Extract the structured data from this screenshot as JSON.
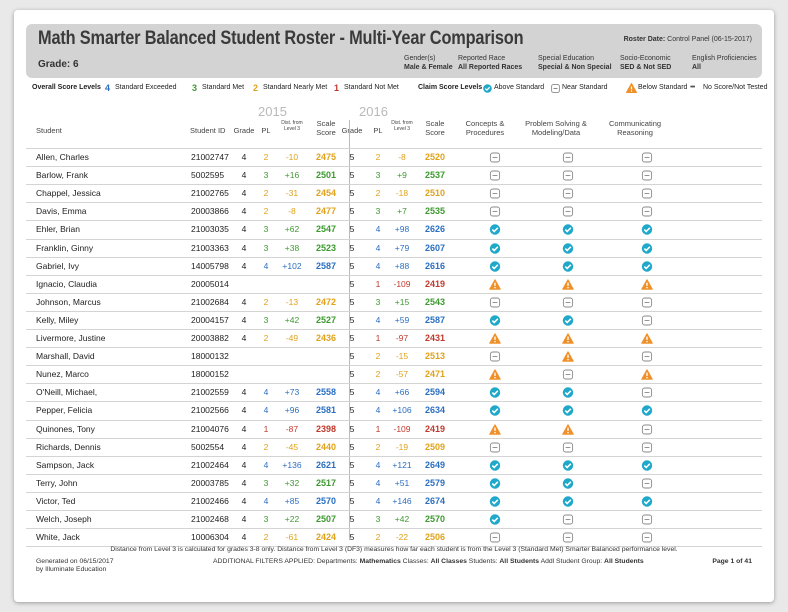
{
  "title": "Math Smarter Balanced Student Roster - Multi-Year Comparison",
  "grade_label": "Grade: 6",
  "roster_date": {
    "label": "Roster Date:",
    "value": "Control Panel (06-15-2017)"
  },
  "filters": [
    {
      "name": "Gender(s)",
      "value": "Male & Female"
    },
    {
      "name": "Reported Race",
      "value": "All Reported Races"
    },
    {
      "name": "Special Education",
      "value": "Special & Non Special"
    },
    {
      "name": "Socio-Economic",
      "value": "SED & Not SED"
    },
    {
      "name": "English Proficiencies",
      "value": "All"
    }
  ],
  "legend": {
    "overall_label": "Overall Score Levels",
    "levels": [
      {
        "num": "4",
        "label": "Standard Exceeded"
      },
      {
        "num": "3",
        "label": "Standard Met"
      },
      {
        "num": "2",
        "label": "Standard Nearly Met"
      },
      {
        "num": "1",
        "label": "Standard Not Met"
      }
    ],
    "claim_label": "Claim Score Levels",
    "claims": [
      "Above Standard",
      "Near Standard",
      "Below Standard",
      "No Score/Not Tested"
    ]
  },
  "columns": {
    "student": "Student",
    "student_id": "Student ID",
    "grade": "Grade",
    "pl": "PL",
    "dist_line1": "Dist. from",
    "dist_line2": "Level 3",
    "scale_line1": "Scale",
    "scale_line2": "Score",
    "year1": "2015",
    "year2": "2016",
    "claim1_line1": "Concepts &",
    "claim1_line2": "Procedures",
    "claim2_line1": "Problem Solving &",
    "claim2_line2": "Modeling/Data",
    "claim3_line1": "Communicating",
    "claim3_line2": "Reasoning"
  },
  "colors": {
    "exceeded": "#2a6fc2",
    "met": "#3c9a2e",
    "nearly": "#e0a21a",
    "not": "#c0392b",
    "above": "#1fa8c9",
    "below": "#f0902a",
    "near": "#8a8a8a"
  },
  "students": [
    {
      "name": "Allen, Charles",
      "id": "21002747",
      "y1": {
        "grade": "4",
        "pl": "2",
        "dist": "-10",
        "scale": "2475"
      },
      "y2": {
        "grade": "5",
        "pl": "2",
        "dist": "-8",
        "scale": "2520"
      },
      "claims": [
        "near",
        "near",
        "near"
      ]
    },
    {
      "name": "Barlow, Frank",
      "id": "5002595",
      "y1": {
        "grade": "4",
        "pl": "3",
        "dist": "+16",
        "scale": "2501"
      },
      "y2": {
        "grade": "5",
        "pl": "3",
        "dist": "+9",
        "scale": "2537"
      },
      "claims": [
        "near",
        "near",
        "near"
      ]
    },
    {
      "name": "Chappel, Jessica",
      "id": "21002765",
      "y1": {
        "grade": "4",
        "pl": "2",
        "dist": "-31",
        "scale": "2454"
      },
      "y2": {
        "grade": "5",
        "pl": "2",
        "dist": "-18",
        "scale": "2510"
      },
      "claims": [
        "near",
        "near",
        "near"
      ]
    },
    {
      "name": "Davis, Emma",
      "id": "20003866",
      "y1": {
        "grade": "4",
        "pl": "2",
        "dist": "-8",
        "scale": "2477"
      },
      "y2": {
        "grade": "5",
        "pl": "3",
        "dist": "+7",
        "scale": "2535"
      },
      "claims": [
        "near",
        "near",
        "near"
      ]
    },
    {
      "name": "Ehler, Brian",
      "id": "21003035",
      "y1": {
        "grade": "4",
        "pl": "3",
        "dist": "+62",
        "scale": "2547"
      },
      "y2": {
        "grade": "5",
        "pl": "4",
        "dist": "+98",
        "scale": "2626"
      },
      "claims": [
        "above",
        "above",
        "above"
      ]
    },
    {
      "name": "Franklin, Ginny",
      "id": "21003363",
      "y1": {
        "grade": "4",
        "pl": "3",
        "dist": "+38",
        "scale": "2523"
      },
      "y2": {
        "grade": "5",
        "pl": "4",
        "dist": "+79",
        "scale": "2607"
      },
      "claims": [
        "above",
        "above",
        "above"
      ]
    },
    {
      "name": "Gabriel, Ivy",
      "id": "14005798",
      "y1": {
        "grade": "4",
        "pl": "4",
        "dist": "+102",
        "scale": "2587"
      },
      "y2": {
        "grade": "5",
        "pl": "4",
        "dist": "+88",
        "scale": "2616"
      },
      "claims": [
        "above",
        "above",
        "above"
      ]
    },
    {
      "name": "Ignacio, Claudia",
      "id": "20005014",
      "y1": null,
      "y2": {
        "grade": "5",
        "pl": "1",
        "dist": "-109",
        "scale": "2419"
      },
      "claims": [
        "below",
        "below",
        "below"
      ]
    },
    {
      "name": "Johnson, Marcus",
      "id": "21002684",
      "y1": {
        "grade": "4",
        "pl": "2",
        "dist": "-13",
        "scale": "2472"
      },
      "y2": {
        "grade": "5",
        "pl": "3",
        "dist": "+15",
        "scale": "2543"
      },
      "claims": [
        "near",
        "near",
        "near"
      ]
    },
    {
      "name": "Kelly, Miley",
      "id": "20004157",
      "y1": {
        "grade": "4",
        "pl": "3",
        "dist": "+42",
        "scale": "2527"
      },
      "y2": {
        "grade": "5",
        "pl": "4",
        "dist": "+59",
        "scale": "2587"
      },
      "claims": [
        "above",
        "above",
        "near"
      ]
    },
    {
      "name": "Livermore, Justine",
      "id": "20003882",
      "y1": {
        "grade": "4",
        "pl": "2",
        "dist": "-49",
        "scale": "2436"
      },
      "y2": {
        "grade": "5",
        "pl": "1",
        "dist": "-97",
        "scale": "2431"
      },
      "claims": [
        "below",
        "below",
        "below"
      ]
    },
    {
      "name": "Marshall, David",
      "id": "18000132",
      "y1": null,
      "y2": {
        "grade": "5",
        "pl": "2",
        "dist": "-15",
        "scale": "2513"
      },
      "claims": [
        "near",
        "below",
        "near"
      ]
    },
    {
      "name": "Nunez, Marco",
      "id": "18000152",
      "y1": null,
      "y2": {
        "grade": "5",
        "pl": "2",
        "dist": "-57",
        "scale": "2471"
      },
      "claims": [
        "below",
        "near",
        "below"
      ]
    },
    {
      "name": "O'Neill, Michael,",
      "id": "21002559",
      "y1": {
        "grade": "4",
        "pl": "4",
        "dist": "+73",
        "scale": "2558"
      },
      "y2": {
        "grade": "5",
        "pl": "4",
        "dist": "+66",
        "scale": "2594"
      },
      "claims": [
        "above",
        "above",
        "near"
      ]
    },
    {
      "name": "Pepper, Felicia",
      "id": "21002566",
      "y1": {
        "grade": "4",
        "pl": "4",
        "dist": "+96",
        "scale": "2581"
      },
      "y2": {
        "grade": "5",
        "pl": "4",
        "dist": "+106",
        "scale": "2634"
      },
      "claims": [
        "above",
        "above",
        "above"
      ]
    },
    {
      "name": "Quinones, Tony",
      "id": "21004076",
      "y1": {
        "grade": "4",
        "pl": "1",
        "dist": "-87",
        "scale": "2398"
      },
      "y2": {
        "grade": "5",
        "pl": "1",
        "dist": "-109",
        "scale": "2419"
      },
      "claims": [
        "below",
        "below",
        "near"
      ]
    },
    {
      "name": "Richards, Dennis",
      "id": "5002554",
      "y1": {
        "grade": "4",
        "pl": "2",
        "dist": "-45",
        "scale": "2440"
      },
      "y2": {
        "grade": "5",
        "pl": "2",
        "dist": "-19",
        "scale": "2509"
      },
      "claims": [
        "near",
        "near",
        "near"
      ]
    },
    {
      "name": "Sampson, Jack",
      "id": "21002464",
      "y1": {
        "grade": "4",
        "pl": "4",
        "dist": "+136",
        "scale": "2621"
      },
      "y2": {
        "grade": "5",
        "pl": "4",
        "dist": "+121",
        "scale": "2649"
      },
      "claims": [
        "above",
        "above",
        "above"
      ]
    },
    {
      "name": "Terry, John",
      "id": "20003785",
      "y1": {
        "grade": "4",
        "pl": "3",
        "dist": "+32",
        "scale": "2517"
      },
      "y2": {
        "grade": "5",
        "pl": "4",
        "dist": "+51",
        "scale": "2579"
      },
      "claims": [
        "above",
        "above",
        "near"
      ]
    },
    {
      "name": "Victor, Ted",
      "id": "21002466",
      "y1": {
        "grade": "4",
        "pl": "4",
        "dist": "+85",
        "scale": "2570"
      },
      "y2": {
        "grade": "5",
        "pl": "4",
        "dist": "+146",
        "scale": "2674"
      },
      "claims": [
        "above",
        "above",
        "above"
      ]
    },
    {
      "name": "Welch, Joseph",
      "id": "21002468",
      "y1": {
        "grade": "4",
        "pl": "3",
        "dist": "+22",
        "scale": "2507"
      },
      "y2": {
        "grade": "5",
        "pl": "3",
        "dist": "+42",
        "scale": "2570"
      },
      "claims": [
        "above",
        "near",
        "near"
      ]
    },
    {
      "name": "White, Jack",
      "id": "10006304",
      "y1": {
        "grade": "4",
        "pl": "2",
        "dist": "-61",
        "scale": "2424"
      },
      "y2": {
        "grade": "5",
        "pl": "2",
        "dist": "-22",
        "scale": "2506"
      },
      "claims": [
        "near",
        "near",
        "near"
      ]
    }
  ],
  "footer": {
    "note": "Distance from Level 3 is calculated for grades 3-8 only. Distance from Level 3 (DF3) measures how far each student is from the Level 3 (Standard Met) Smarter Balanced performance level.",
    "generated": "Generated on 06/15/2017",
    "by": "by Illuminate Education",
    "additional_label": "ADDITIONAL FILTERS APPLIED:",
    "departments_label": "Departments:",
    "departments": "Mathematics",
    "classes_label": "Classes:",
    "classes": "All Classes",
    "students_label": "Students:",
    "students": "All Students",
    "group_label": "Addl Student Group:",
    "group": "All Students",
    "page": "Page 1 of 41"
  }
}
